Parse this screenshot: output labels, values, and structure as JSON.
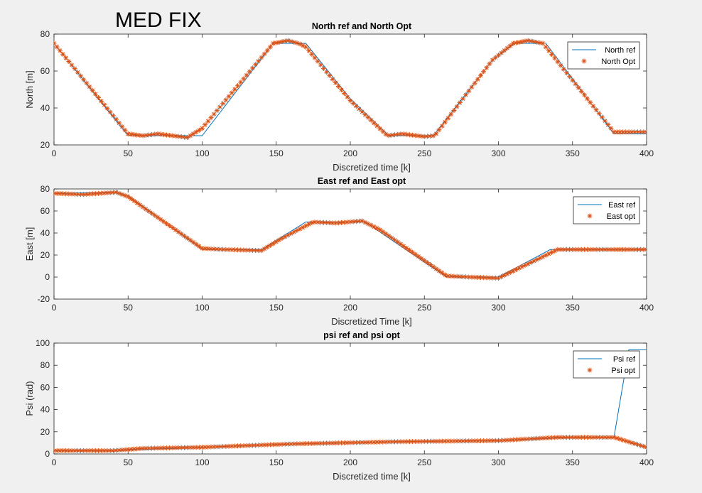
{
  "figure": {
    "heading": "MED FIX",
    "background": "#f0f0f0",
    "axes_color": "#262626",
    "ref_color": "#0072bd",
    "opt_color": "#d95319"
  },
  "chart_data": [
    {
      "type": "line",
      "title": "North ref and North Opt",
      "xlabel": "Discretized time [k]",
      "ylabel": "North [m]",
      "xlim": [
        0,
        400
      ],
      "ylim": [
        20,
        80
      ],
      "xticks": [
        "0",
        "50",
        "100",
        "150",
        "200",
        "250",
        "300",
        "350",
        "400"
      ],
      "yticks": [
        "20",
        "40",
        "60",
        "80"
      ],
      "legend_position": "top-right",
      "series": [
        {
          "name": "North ref",
          "style": "line",
          "x": [
            0,
            50,
            100,
            148,
            170,
            200,
            226,
            236,
            256,
            296,
            311,
            332,
            378,
            400
          ],
          "y": [
            75,
            25,
            25,
            75,
            75,
            45,
            25,
            25,
            25,
            66,
            75,
            75,
            26,
            26
          ]
        },
        {
          "name": "North Opt",
          "style": "marker",
          "x": [
            0,
            50,
            60,
            70,
            80,
            90,
            100,
            148,
            158,
            165,
            170,
            200,
            225,
            235,
            250,
            257,
            296,
            310,
            320,
            330,
            378,
            400
          ],
          "y": [
            75,
            26,
            25,
            26,
            25,
            24,
            29,
            75,
            76.5,
            75,
            73,
            44,
            25,
            26,
            24.5,
            25,
            66,
            75,
            76.5,
            75,
            27,
            27
          ]
        }
      ]
    },
    {
      "type": "line",
      "title": "East ref and East opt",
      "xlabel": "Discretized Time [k]",
      "ylabel": "East [m]",
      "xlim": [
        0,
        400
      ],
      "ylim": [
        -20,
        80
      ],
      "xticks": [
        "0",
        "50",
        "100",
        "150",
        "200",
        "250",
        "300",
        "350",
        "400"
      ],
      "yticks": [
        "-20",
        "0",
        "20",
        "40",
        "60",
        "80"
      ],
      "legend_position": "top-right",
      "series": [
        {
          "name": "East ref",
          "style": "line",
          "x": [
            0,
            40,
            50,
            100,
            140,
            170,
            210,
            265,
            300,
            335,
            400
          ],
          "y": [
            76,
            77,
            74,
            25,
            25,
            50,
            50,
            0,
            0,
            25,
            25
          ]
        },
        {
          "name": "East opt",
          "style": "marker",
          "x": [
            0,
            20,
            42,
            50,
            100,
            115,
            140,
            155,
            175,
            190,
            208,
            220,
            265,
            280,
            300,
            340,
            400
          ],
          "y": [
            76,
            75,
            77,
            73,
            26,
            25,
            24,
            36,
            50,
            49,
            51,
            43,
            1,
            0,
            -1,
            25,
            25
          ]
        }
      ]
    },
    {
      "type": "line",
      "title": "psi ref and psi opt",
      "xlabel": "Discretized time [k]",
      "ylabel": "Psi (rad)",
      "xlim": [
        0,
        400
      ],
      "ylim": [
        0,
        100
      ],
      "xticks": [
        "0",
        "50",
        "100",
        "150",
        "200",
        "250",
        "300",
        "350",
        "400"
      ],
      "yticks": [
        "0",
        "20",
        "40",
        "60",
        "80",
        "100"
      ],
      "legend_position": "top-right",
      "series": [
        {
          "name": "Psi ref",
          "style": "line",
          "x": [
            0,
            40,
            100,
            160,
            230,
            300,
            350,
            378,
            388,
            400
          ],
          "y": [
            3,
            3,
            6,
            9,
            11,
            12,
            15,
            15,
            94,
            94
          ]
        },
        {
          "name": "Psi opt",
          "style": "marker",
          "x": [
            0,
            40,
            60,
            100,
            160,
            230,
            300,
            340,
            378,
            400
          ],
          "y": [
            3,
            3,
            5,
            6,
            9,
            11,
            12,
            15,
            15,
            6
          ]
        }
      ]
    }
  ]
}
